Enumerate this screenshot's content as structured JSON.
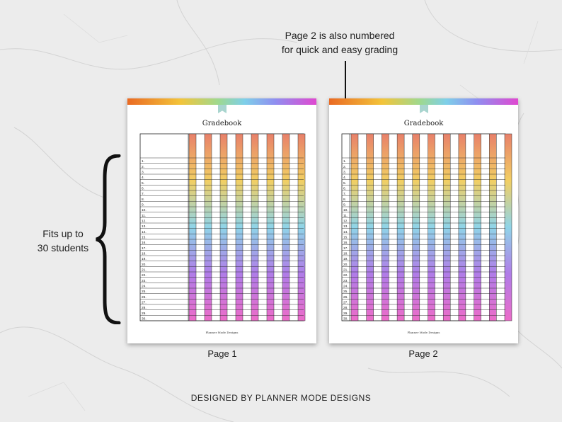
{
  "callout": {
    "line1": "Page 2 is also numbered",
    "line2": "for quick and easy grading"
  },
  "side_note": {
    "line1": "Fits up to",
    "line2": "30 students"
  },
  "pages": [
    {
      "title": "Gradebook",
      "footer": "Planner Mode Designs",
      "label": "Page 1",
      "name_column": true
    },
    {
      "title": "Gradebook",
      "footer": "Planner Mode Designs",
      "label": "Page 2",
      "name_column": false
    }
  ],
  "row_numbers": [
    "1.",
    "2.",
    "3.",
    "4.",
    "5.",
    "6.",
    "7.",
    "8.",
    "9.",
    "10.",
    "11.",
    "12.",
    "13.",
    "14.",
    "15.",
    "16.",
    "17.",
    "18.",
    "19.",
    "20.",
    "21.",
    "22.",
    "23.",
    "24.",
    "25.",
    "26.",
    "27.",
    "28.",
    "29.",
    "30."
  ],
  "credit": "DESIGNED BY PLANNER MODE DESIGNS",
  "colors": {
    "background": "#ececec",
    "rainbow": [
      "#e8806a",
      "#f2cf63",
      "#8fd4e8",
      "#b07ce8",
      "#ec6cc9"
    ],
    "ribbon": "#a9d5cf"
  }
}
